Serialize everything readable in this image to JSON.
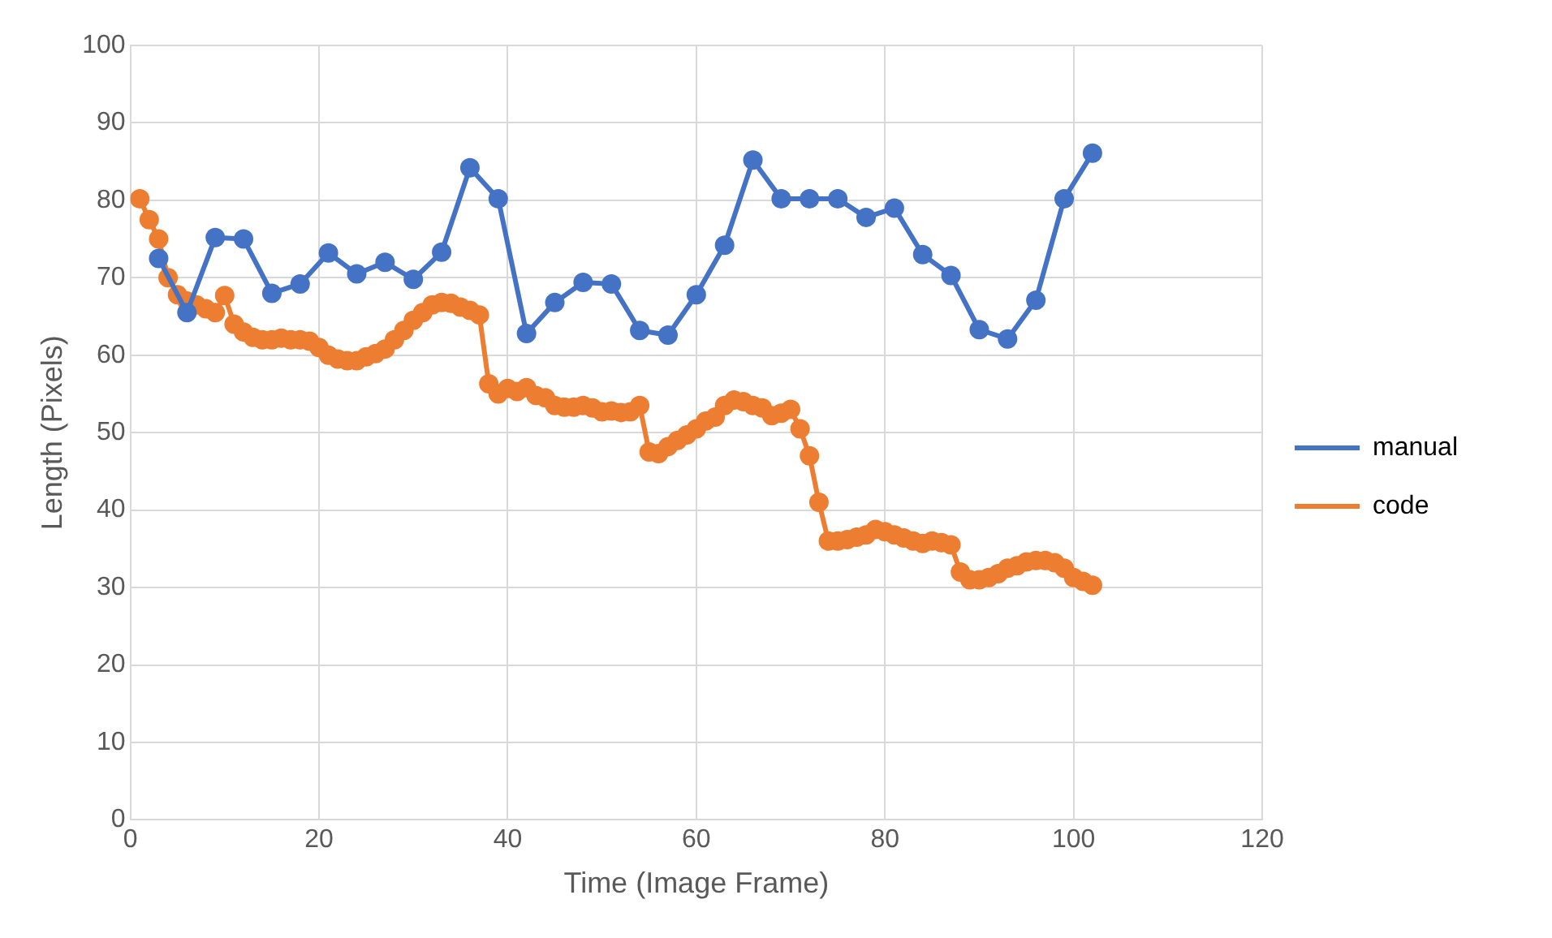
{
  "chart_data": {
    "type": "line",
    "xlabel": "Time (Image Frame)",
    "ylabel": "Length (Pixels)",
    "xlim": [
      0,
      120
    ],
    "xticks": [
      0,
      20,
      40,
      60,
      80,
      100,
      120
    ],
    "ylim": [
      0,
      100
    ],
    "yticks": [
      0,
      10,
      20,
      30,
      40,
      50,
      60,
      70,
      80,
      90,
      100
    ],
    "grid": true,
    "legend": "right",
    "marker": "circle",
    "series": [
      {
        "name": "manual",
        "color": "#4472c4",
        "x": [
          3,
          6,
          9,
          12,
          15,
          18,
          21,
          24,
          27,
          30,
          33,
          36,
          39,
          42,
          45,
          48,
          51,
          54,
          57,
          60,
          63,
          66,
          69,
          72,
          75,
          78,
          81,
          84,
          87,
          90,
          93,
          96,
          99,
          102
        ],
        "values": [
          72.5,
          65.5,
          75.2,
          75,
          68,
          69.2,
          73.2,
          70.5,
          72,
          69.8,
          73.3,
          84.2,
          80.2,
          62.8,
          66.8,
          69.4,
          69.2,
          63.2,
          62.6,
          67.8,
          74.2,
          85.2,
          80.2,
          80.2,
          80.2,
          77.8,
          79,
          73,
          70.3,
          63.3,
          62.1,
          67.1,
          80.2,
          86.1
        ]
      },
      {
        "name": "code",
        "color": "#ed7d31",
        "x": [
          1,
          2,
          3,
          4,
          5,
          6,
          7,
          8,
          9,
          10,
          11,
          12,
          13,
          14,
          15,
          16,
          17,
          18,
          19,
          20,
          21,
          22,
          23,
          24,
          25,
          26,
          27,
          28,
          29,
          30,
          31,
          32,
          33,
          34,
          35,
          36,
          37,
          38,
          39,
          40,
          41,
          42,
          43,
          44,
          45,
          46,
          47,
          48,
          49,
          50,
          51,
          52,
          53,
          54,
          55,
          56,
          57,
          58,
          59,
          60,
          61,
          62,
          63,
          64,
          65,
          66,
          67,
          68,
          69,
          70,
          71,
          72,
          73,
          74,
          75,
          76,
          77,
          78,
          79,
          80,
          81,
          82,
          83,
          84,
          85,
          86,
          87,
          88,
          89,
          90,
          91,
          92,
          93,
          94,
          95,
          96,
          97,
          98,
          99,
          100,
          101,
          102
        ],
        "values": [
          80.2,
          77.5,
          75,
          70,
          67.8,
          67,
          66.5,
          66,
          65.5,
          67.7,
          64,
          63,
          62.3,
          62,
          62,
          62.2,
          62,
          62,
          61.8,
          61,
          60,
          59.5,
          59.3,
          59.3,
          59.8,
          60.2,
          60.8,
          62,
          63.2,
          64.5,
          65.5,
          66.5,
          66.8,
          66.7,
          66.2,
          65.8,
          65.2,
          56.3,
          55,
          55.7,
          55.3,
          55.8,
          54.8,
          54.5,
          53.5,
          53.3,
          53.3,
          53.5,
          53.2,
          52.7,
          52.8,
          52.6,
          52.7,
          53.5,
          47.5,
          47.3,
          48.2,
          49,
          49.7,
          50.5,
          51.5,
          52,
          53.5,
          54.2,
          54,
          53.5,
          53.2,
          52.2,
          52.5,
          53,
          50.5,
          47,
          41,
          36,
          36,
          36.2,
          36.5,
          36.8,
          37.5,
          37.2,
          36.8,
          36.4,
          36,
          35.7,
          36,
          35.8,
          35.5,
          32,
          31,
          31,
          31.3,
          31.8,
          32.5,
          32.8,
          33.3,
          33.5,
          33.5,
          33.2,
          32.5,
          31.3,
          30.8,
          30.3
        ]
      }
    ]
  }
}
